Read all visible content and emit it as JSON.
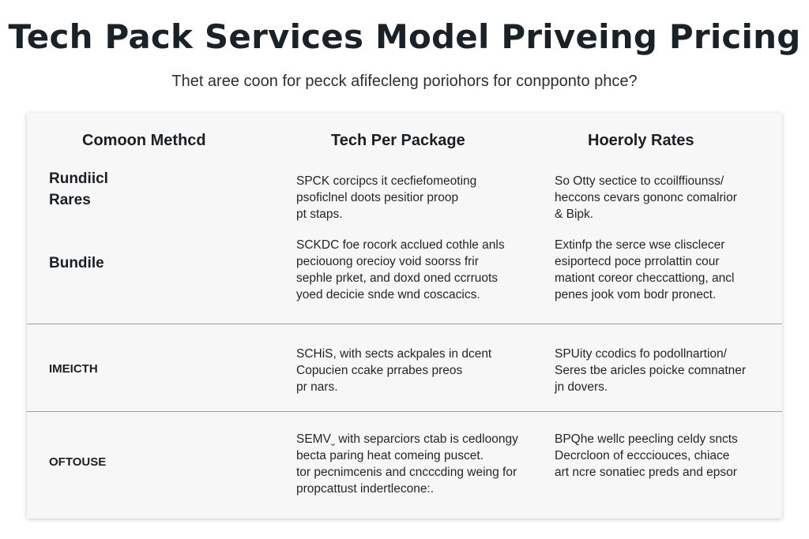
{
  "header": {
    "title": "Tech Pack Services Model Priveing Pricing",
    "subtitle": "Thet aree coon for pecck afifecleng poriohors for conpponto phce?"
  },
  "table": {
    "columns": [
      "Comoon Methcd",
      "Tech Per Package",
      "Hoeroly Rates"
    ],
    "rows": [
      {
        "label": "Rundiicl\nRares",
        "cells": [
          [
            "SPCK corcipcs it cecfiefomeoting",
            "psoficlnel doots pesitior proop",
            "pt staps."
          ],
          [
            "So Otty sectice to ccoilffiounss/",
            "heccons cevars gononc comalrior",
            "& Bipk."
          ]
        ]
      },
      {
        "label": "Bundile",
        "cells": [
          [
            "SCKDC foe rocork acclued cothle anls",
            "peciouong orecioy void soorss frir",
            "sephle prket, and doxd oned ccrruots",
            "yoed decicie snde wnd coscacics."
          ],
          [
            "Extinfp the serce wse clisclecer",
            "esiportecd poce prrolattin cour",
            "mationt coreor checcattiong, ancl",
            "penes jook vom bodr pronect."
          ]
        ]
      },
      {
        "label": "IMEICTH",
        "cells": [
          [
            "SCHiS, with sects ackpales in dcent",
            "Copucien ccake prrabes preos",
            "pr nars."
          ],
          [
            "SPUity ccodics fo podollnartion/",
            "Seres tbe aricles poicke comnatner",
            "jn dovers."
          ]
        ]
      },
      {
        "label": "OFTOUSE",
        "cells": [
          [
            "SEMVˬ with separciors ctab is cedloongy",
            "becta paring heat comeing puscet.",
            "tor pecnimcenis and cncccding weing for",
            "propcattust indertlecone:."
          ],
          [
            "BPQhe wellc peecling celdy sncts",
            "Decrcloon of eccciouces, chiace",
            "art ncre sonatiec preds and epsor"
          ]
        ]
      }
    ]
  }
}
